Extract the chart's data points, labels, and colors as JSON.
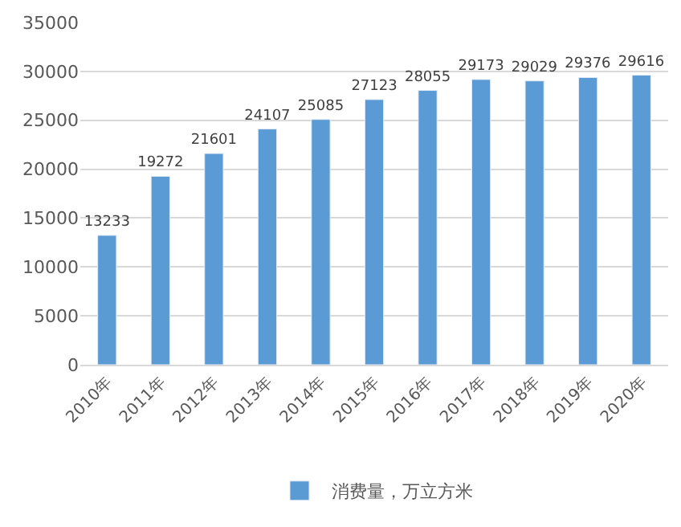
{
  "chart_data": {
    "type": "bar",
    "categories": [
      "2010年",
      "2011年",
      "2012年",
      "2013年",
      "2014年",
      "2015年",
      "2016年",
      "2017年",
      "2018年",
      "2019年",
      "2020年"
    ],
    "series": [
      {
        "name": "消费量，万立方米",
        "color": "#5b9bd5",
        "values": [
          13233,
          19272,
          21601,
          24107,
          25085,
          27123,
          28055,
          29173,
          29029,
          29376,
          29616
        ]
      }
    ],
    "ylim": [
      0,
      35000
    ],
    "yticks": [
      0,
      5000,
      10000,
      15000,
      20000,
      25000,
      30000,
      35000
    ],
    "grid": "y",
    "legend": "bottom",
    "data_labels": true
  }
}
